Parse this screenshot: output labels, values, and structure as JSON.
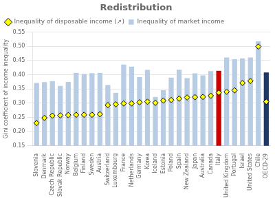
{
  "chart_data": {
    "type": "bar",
    "title": "Redistribution",
    "y_label": "Gini coefficient of income inequality",
    "categories": [
      "Slovenia",
      "Denmark",
      "Czech Republic",
      "Slovak Republic",
      "Norway",
      "Belgium",
      "Finland",
      "Sweden",
      "Austria",
      "Switzerland",
      "Luxembourg",
      "France",
      "Netherlands",
      "Germany",
      "Korea",
      "Iceland",
      "Estonia",
      "Poland",
      "Spain",
      "New Zealand",
      "Japan",
      "Australia",
      "Canada",
      "Italy",
      "United Kingdom",
      "Portugal",
      "Israel",
      "United States",
      "Chile",
      "OECD-29"
    ],
    "series": [
      {
        "name": "Inequality of market income",
        "type": "bar",
        "colors": [
          "#b8cce4",
          "#b8cce4",
          "#b8cce4",
          "#b8cce4",
          "#b8cce4",
          "#b8cce4",
          "#b8cce4",
          "#b8cce4",
          "#b8cce4",
          "#b8cce4",
          "#b8cce4",
          "#b8cce4",
          "#b8cce4",
          "#b8cce4",
          "#b8cce4",
          "#b8cce4",
          "#b8cce4",
          "#b8cce4",
          "#b8cce4",
          "#b8cce4",
          "#b8cce4",
          "#b8cce4",
          "#b8cce4",
          "#cc0000",
          "#b8cce4",
          "#b8cce4",
          "#b8cce4",
          "#b8cce4",
          "#b8cce4",
          "#1f3864"
        ],
        "values": [
          0.372,
          0.375,
          0.379,
          0.362,
          0.376,
          0.408,
          0.404,
          0.407,
          0.408,
          0.365,
          0.338,
          0.437,
          0.43,
          0.393,
          0.418,
          0.323,
          0.347,
          0.391,
          0.419,
          0.389,
          0.406,
          0.399,
          0.414,
          0.415,
          0.462,
          0.456,
          0.459,
          0.462,
          0.519,
          0.409
        ]
      },
      {
        "name": "Inequality of disposable income (↗)",
        "type": "scatter",
        "color": "#ffff00",
        "marker": "diamond",
        "values": [
          0.23,
          0.248,
          0.256,
          0.257,
          0.258,
          0.259,
          0.259,
          0.259,
          0.261,
          0.293,
          0.296,
          0.299,
          0.299,
          0.303,
          0.305,
          0.301,
          0.309,
          0.311,
          0.316,
          0.32,
          0.321,
          0.322,
          0.326,
          0.337,
          0.34,
          0.345,
          0.371,
          0.378,
          0.499,
          0.305
        ]
      }
    ],
    "ylim": [
      0.15,
      0.55
    ],
    "yticks": [
      0.15,
      {
        "value": 0.2,
        "label": "0.20"
      },
      0.25,
      {
        "value": 0.3,
        "label": "0.30"
      },
      0.35,
      {
        "value": 0.4,
        "label": "0.40"
      },
      0.45,
      {
        "value": 0.5,
        "label": "0.50"
      },
      0.55
    ],
    "grid": true,
    "legend": "upper left"
  }
}
